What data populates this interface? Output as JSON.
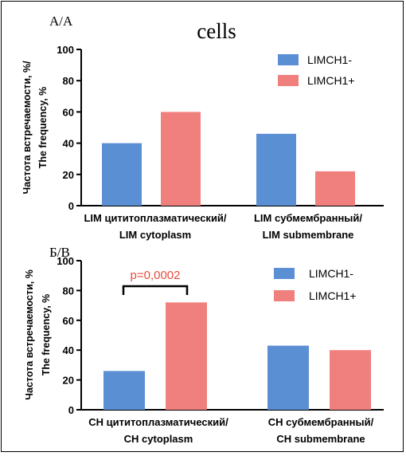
{
  "figure_title": "cells",
  "colors": {
    "limch1_minus": "#5b8fd4",
    "limch1_plus": "#f0807e",
    "annotation": "#e74c3c"
  },
  "chart_data": [
    {
      "type": "bar",
      "panel_label": "А/А",
      "title": "cells",
      "ylabel": [
        "Частота встречаемости, %/",
        "The frequency, %"
      ],
      "ylim": [
        0,
        100
      ],
      "yticks": [
        0,
        20,
        40,
        60,
        80,
        100
      ],
      "categories": [
        {
          "line1": "LIM цититоплазматический/",
          "line2": "LIM cytoplasm"
        },
        {
          "line1": "LIM субмембранный/",
          "line2": "LIM submembrane"
        }
      ],
      "series": [
        {
          "name": "LIMCH1-",
          "values": [
            40,
            46
          ]
        },
        {
          "name": "LIMCH1+",
          "values": [
            60,
            22
          ]
        }
      ],
      "legend_position": "top-right",
      "annotations": []
    },
    {
      "type": "bar",
      "panel_label": "Б/В",
      "ylabel": [
        "Частота встречаемости, %",
        "The frequency, %"
      ],
      "ylim": [
        0,
        100
      ],
      "yticks": [
        0,
        20,
        40,
        60,
        80,
        100
      ],
      "categories": [
        {
          "line1": "CH цититоплазматический/",
          "line2": "CH cytoplasm"
        },
        {
          "line1": "CH субмембранный/",
          "line2": "CH submembrane"
        }
      ],
      "series": [
        {
          "name": "LIMCH1-",
          "values": [
            26,
            43
          ]
        },
        {
          "name": "LIMCH1+",
          "values": [
            72,
            40
          ]
        }
      ],
      "legend_position": "top-right",
      "annotations": [
        {
          "text": "p=0,0002",
          "category": 0
        }
      ]
    }
  ]
}
